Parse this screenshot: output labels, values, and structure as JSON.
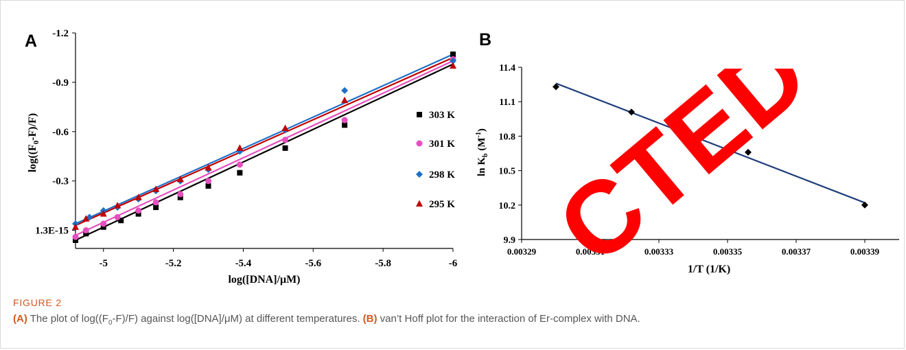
{
  "figure": {
    "caption_label": "FIGURE 2",
    "caption_a_tag": "(A)",
    "caption_a_text": " The plot of log((F",
    "caption_a_sub": "0",
    "caption_a_text2": "-F)/F) against log([DNA]/μM) at different temperatures. ",
    "caption_b_tag": "(B)",
    "caption_b_text": " van’t Hoff plot for the interaction of Er-complex with DNA.",
    "stamp_text": "REDACTED",
    "stamp_color": "#ff0000"
  },
  "chart_data": [
    {
      "panel": "A",
      "type": "scatter",
      "title": "",
      "xlabel": "log([DNA]/μM)",
      "ylabel": "log((F0-F)/F)",
      "xlim": [
        -4.92,
        -6.0
      ],
      "ylim": [
        0.11,
        -1.2
      ],
      "x_ticks": [
        -5,
        -5.2,
        -5.4,
        -5.6,
        -5.8,
        -6
      ],
      "x_tick_labels": [
        "-5",
        "-5.2",
        "-5.4",
        "-5.6",
        "-5.8",
        "-6"
      ],
      "y_ticks": [
        0,
        -0.3,
        -0.6,
        -0.9,
        -1.2
      ],
      "y_tick_labels": [
        "1.3E-15",
        "-0.3",
        "-0.6",
        "-0.9",
        "-1.2"
      ],
      "grid": false,
      "legend_position": "right",
      "series": [
        {
          "name": "303 K",
          "color": "#000000",
          "marker": "square",
          "x": [
            -4.92,
            -4.95,
            -5.0,
            -5.05,
            -5.1,
            -5.15,
            -5.22,
            -5.3,
            -5.39,
            -5.52,
            -5.69,
            -6.0
          ],
          "y": [
            0.06,
            0.02,
            -0.02,
            -0.06,
            -0.1,
            -0.14,
            -0.2,
            -0.27,
            -0.35,
            -0.5,
            -0.64,
            -1.07
          ],
          "fit": [
            0.06,
            -1.01
          ]
        },
        {
          "name": "301 K",
          "color": "#e64fbf",
          "marker": "circle",
          "x": [
            -4.92,
            -4.95,
            -5.0,
            -5.04,
            -5.1,
            -5.15,
            -5.22,
            -5.3,
            -5.39,
            -5.52,
            -5.69,
            -6.0
          ],
          "y": [
            0.04,
            0.0,
            -0.04,
            -0.08,
            -0.12,
            -0.17,
            -0.22,
            -0.3,
            -0.4,
            -0.55,
            -0.67,
            -1.04
          ],
          "fit": [
            0.03,
            -1.03
          ]
        },
        {
          "name": "298 K",
          "color": "#1e6fc7",
          "marker": "diamond",
          "x": [
            -4.92,
            -4.96,
            -5.0,
            -5.04,
            -5.1,
            -5.15,
            -5.22,
            -5.3,
            -5.39,
            -5.52,
            -5.69,
            -6.0
          ],
          "y": [
            -0.04,
            -0.08,
            -0.12,
            -0.14,
            -0.19,
            -0.24,
            -0.3,
            -0.37,
            -0.48,
            -0.61,
            -0.85,
            -1.03
          ],
          "fit": [
            -0.04,
            -1.07
          ]
        },
        {
          "name": "295 K",
          "color": "#c00000",
          "marker": "triangle",
          "x": [
            -4.92,
            -4.95,
            -5.0,
            -5.04,
            -5.1,
            -5.15,
            -5.22,
            -5.3,
            -5.39,
            -5.52,
            -5.69,
            -6.0
          ],
          "y": [
            -0.02,
            -0.07,
            -0.1,
            -0.15,
            -0.2,
            -0.25,
            -0.31,
            -0.38,
            -0.5,
            -0.62,
            -0.79,
            -1.0
          ],
          "fit": [
            -0.03,
            -1.05
          ]
        }
      ]
    },
    {
      "panel": "B",
      "type": "scatter",
      "title": "",
      "xlabel": "1/T (1/K)",
      "ylabel": "ln Kb (M-1)",
      "xlim": [
        0.00329,
        0.0034
      ],
      "ylim": [
        9.9,
        11.4
      ],
      "x_ticks": [
        0.00329,
        0.00331,
        0.00333,
        0.00335,
        0.00337,
        0.00339
      ],
      "x_tick_labels": [
        "0.00329",
        "0.00331",
        "0.00333",
        "0.00335",
        "0.00337",
        "0.00339"
      ],
      "y_ticks": [
        9.9,
        10.2,
        10.5,
        10.8,
        11.1,
        11.4
      ],
      "y_tick_labels": [
        "9.9",
        "10.2",
        "10.5",
        "10.8",
        "11.1",
        "11.4"
      ],
      "grid": false,
      "series": [
        {
          "color": "#000000",
          "marker": "diamond",
          "x": [
            0.0033,
            0.003322,
            0.003356,
            0.00339
          ],
          "y": [
            11.23,
            11.01,
            10.66,
            10.2
          ],
          "fit_color": "#1f3d7a",
          "fit": [
            11.26,
            10.22
          ]
        }
      ]
    }
  ]
}
